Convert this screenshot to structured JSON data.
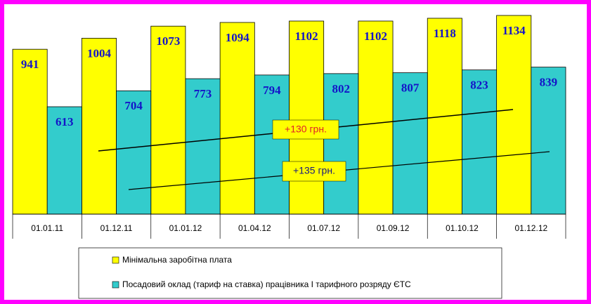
{
  "chart_data": {
    "type": "bar",
    "categories": [
      "01.01.11",
      "01.12.11",
      "01.01.12",
      "01.04.12",
      "01.07.12",
      "01.09.12",
      "01.10.12",
      "01.12.12"
    ],
    "series": [
      {
        "name": "Мінімальна заробітна плата",
        "color": "#ffff00",
        "values": [
          941,
          1004,
          1073,
          1094,
          1102,
          1102,
          1118,
          1134
        ]
      },
      {
        "name": "Посадовий оклад (тариф на ставка) працівника І тарифного розряду ЄТС",
        "color": "#33cccc",
        "values": [
          613,
          704,
          773,
          794,
          802,
          807,
          823,
          839
        ]
      }
    ],
    "annotations": [
      "+130 грн.",
      "+135 грн."
    ]
  }
}
